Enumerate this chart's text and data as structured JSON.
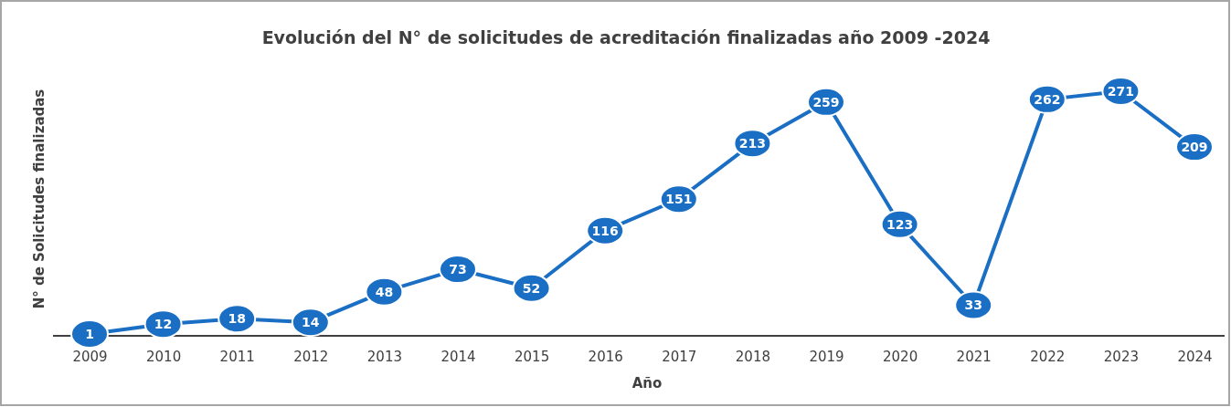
{
  "chart_data": {
    "type": "line",
    "title": "Evolución del N° de solicitudes de acreditación finalizadas año 2009 -2024",
    "xlabel": "Año",
    "ylabel": "N° de Solicitudes finalizadas",
    "categories": [
      "2009",
      "2010",
      "2011",
      "2012",
      "2013",
      "2014",
      "2015",
      "2016",
      "2017",
      "2018",
      "2019",
      "2020",
      "2021",
      "2022",
      "2023",
      "2024"
    ],
    "values": [
      1,
      12,
      18,
      14,
      48,
      73,
      52,
      116,
      151,
      213,
      259,
      123,
      33,
      262,
      271,
      209
    ],
    "color": "#1a6fc4",
    "marker": "circle",
    "data_labels": true
  }
}
